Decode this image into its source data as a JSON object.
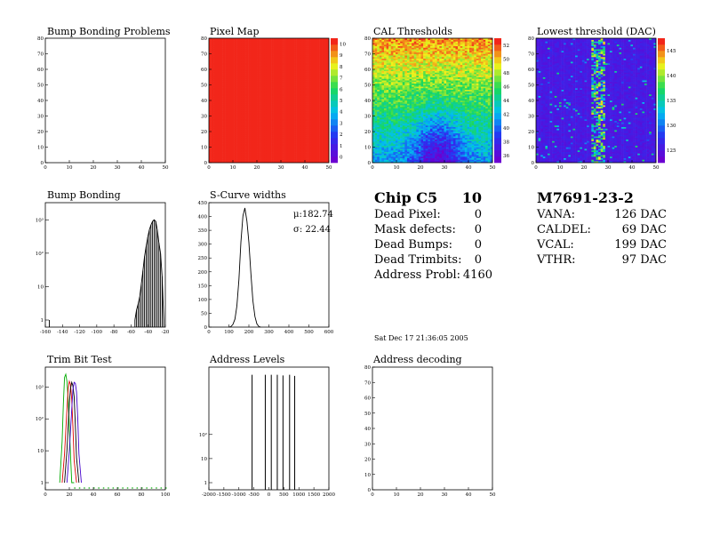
{
  "plots": {
    "bump_problems": {
      "title": "Bump Bonding Problems",
      "xticks": [
        "0",
        "10",
        "20",
        "30",
        "40",
        "50"
      ],
      "yticks": [
        "0",
        "10",
        "20",
        "30",
        "40",
        "50",
        "60",
        "70",
        "80"
      ]
    },
    "pixel_map": {
      "title": "Pixel Map",
      "xticks": [
        "0",
        "10",
        "20",
        "30",
        "40",
        "50"
      ],
      "yticks": [
        "0",
        "10",
        "20",
        "30",
        "40",
        "50",
        "60",
        "70",
        "80"
      ],
      "zticks": [
        "0",
        "1",
        "2",
        "3",
        "4",
        "5",
        "6",
        "7",
        "8",
        "9",
        "10"
      ],
      "fill_value": 10
    },
    "cal_thresholds": {
      "title": "CAL Thresholds",
      "xticks": [
        "0",
        "10",
        "20",
        "30",
        "40",
        "50"
      ],
      "yticks": [
        "0",
        "10",
        "20",
        "30",
        "40",
        "50",
        "60",
        "70",
        "80"
      ],
      "zticks": [
        "36",
        "38",
        "40",
        "42",
        "44",
        "46",
        "48",
        "50",
        "52"
      ]
    },
    "lowest_threshold": {
      "title": "Lowest threshold (DAC)",
      "xticks": [
        "0",
        "10",
        "20",
        "30",
        "40",
        "50"
      ],
      "yticks": [
        "0",
        "10",
        "20",
        "30",
        "40",
        "50",
        "60",
        "70",
        "80"
      ],
      "zticks": [
        "125",
        "130",
        "135",
        "140",
        "145"
      ]
    },
    "bump_bonding": {
      "title": "Bump Bonding",
      "xticks": [
        "-160",
        "-140",
        "-120",
        "-100",
        "-80",
        "-60",
        "-40",
        "-20"
      ],
      "yticks": [
        "1",
        "10",
        "10²",
        "10³"
      ]
    },
    "scurve": {
      "title": "S-Curve widths",
      "xticks": [
        "0",
        "100",
        "200",
        "300",
        "400",
        "500",
        "600"
      ],
      "yticks": [
        "0",
        "50",
        "100",
        "150",
        "200",
        "250",
        "300",
        "350",
        "400",
        "450"
      ],
      "stat_mu": "μ:182.74",
      "stat_sigma": "σ: 22.44"
    },
    "trim_bit": {
      "title": "Trim Bit Test",
      "xticks": [
        "0",
        "20",
        "40",
        "60",
        "80",
        "100"
      ],
      "yticks": [
        "1",
        "10",
        "10²",
        "10³"
      ]
    },
    "address_levels": {
      "title": "Address Levels",
      "xticks": [
        "-2000",
        "-1500",
        "-1000",
        "-500",
        "0",
        "500",
        "1000",
        "1500",
        "2000"
      ],
      "yticks": [
        "1",
        "10",
        "10²"
      ]
    },
    "address_decoding": {
      "title": "Address decoding",
      "xticks": [
        "0",
        "10",
        "20",
        "30",
        "40",
        "50"
      ],
      "yticks": [
        "0",
        "10",
        "20",
        "30",
        "40",
        "50",
        "60",
        "70",
        "80"
      ]
    }
  },
  "summary": {
    "chip_label": "Chip C5",
    "chip_value": "10",
    "rows": [
      {
        "label": "Dead Pixel:",
        "value": "0"
      },
      {
        "label": "Mask defects:",
        "value": "0"
      },
      {
        "label": "Dead Bumps:",
        "value": "0"
      },
      {
        "label": "Dead Trimbits:",
        "value": "0"
      },
      {
        "label": "Address Probl:",
        "value": "4160"
      }
    ],
    "date": "Sat Dec 17 21:36:05 2005"
  },
  "module": {
    "id": "M7691-23-2",
    "rows": [
      {
        "label": "VANA:",
        "value": "126 DAC"
      },
      {
        "label": "CALDEL:",
        "value": "69 DAC"
      },
      {
        "label": "VCAL:",
        "value": "199 DAC"
      },
      {
        "label": "VTHR:",
        "value": "97 DAC"
      }
    ]
  },
  "chart_data": [
    {
      "type": "heatmap",
      "title": "Bump Bonding Problems",
      "xlim": [
        0,
        52
      ],
      "ylim": [
        0,
        80
      ],
      "values": "empty"
    },
    {
      "type": "heatmap",
      "title": "Pixel Map",
      "xlim": [
        0,
        52
      ],
      "ylim": [
        0,
        80
      ],
      "zlim": [
        0,
        10
      ],
      "uniform_value": 10
    },
    {
      "type": "heatmap",
      "title": "CAL Thresholds",
      "xlim": [
        0,
        52
      ],
      "ylim": [
        0,
        80
      ],
      "zlim": [
        35,
        53
      ],
      "trend": "high (~50) at top, low (~38) near bottom centre x 20-35"
    },
    {
      "type": "heatmap",
      "title": "Lowest threshold (DAC)",
      "xlim": [
        0,
        52
      ],
      "ylim": [
        0,
        80
      ],
      "zlim": [
        122,
        148
      ],
      "trend": "mostly ~122; column band at x 24-29 with values 128-146"
    },
    {
      "type": "bar",
      "title": "Bump Bonding",
      "xlim": [
        -160,
        -10
      ],
      "log_y": true,
      "x": [
        -155,
        -48,
        -46,
        -44,
        -42,
        -40,
        -38,
        -36,
        -34,
        -32,
        -30,
        -28,
        -26,
        -24,
        -22,
        -20,
        -18,
        -16,
        -14,
        -12
      ],
      "values": [
        1,
        1,
        2,
        3,
        5,
        12,
        30,
        80,
        160,
        300,
        500,
        700,
        900,
        1000,
        900,
        500,
        200,
        100,
        20,
        1
      ]
    },
    {
      "type": "bar",
      "title": "S-Curve widths",
      "xlim": [
        0,
        600
      ],
      "ylim": [
        0,
        470
      ],
      "x": [
        110,
        120,
        130,
        140,
        150,
        160,
        170,
        180,
        190,
        200,
        210,
        220,
        230,
        240,
        250
      ],
      "values": [
        2,
        10,
        30,
        80,
        180,
        320,
        420,
        450,
        400,
        320,
        200,
        100,
        40,
        12,
        2
      ]
    },
    {
      "type": "line",
      "title": "Trim Bit Test",
      "xlim": [
        0,
        100
      ],
      "log_y": true,
      "series": [
        {
          "color": "#00aa00",
          "x": [
            12,
            14,
            15,
            16,
            17,
            18,
            19,
            20,
            21,
            22,
            24
          ],
          "values": [
            1,
            20,
            300,
            2000,
            2500,
            1500,
            400,
            60,
            8,
            1,
            1
          ]
        },
        {
          "color": "#dd0000",
          "x": [
            14,
            16,
            18,
            19,
            20,
            21,
            22,
            23,
            24,
            26
          ],
          "values": [
            1,
            8,
            200,
            900,
            1500,
            1200,
            400,
            60,
            5,
            1
          ]
        },
        {
          "color": "#000000",
          "x": [
            16,
            18,
            20,
            21,
            22,
            23,
            24,
            25,
            26,
            28
          ],
          "values": [
            1,
            10,
            300,
            900,
            1400,
            1100,
            500,
            60,
            6,
            1
          ]
        },
        {
          "color": "#4400cc",
          "x": [
            18,
            20,
            22,
            23,
            24,
            25,
            26,
            27,
            28,
            30
          ],
          "values": [
            1,
            10,
            200,
            800,
            1400,
            1300,
            700,
            100,
            8,
            1
          ]
        }
      ]
    },
    {
      "type": "bar",
      "title": "Address Levels",
      "xlim": [
        -2000,
        2000
      ],
      "log_y": true,
      "x": [
        -560,
        -120,
        80,
        280,
        470,
        690,
        860
      ],
      "values": [
        30000,
        30000,
        30000,
        30000,
        28000,
        30000,
        27000
      ]
    },
    {
      "type": "heatmap",
      "title": "Address decoding",
      "xlim": [
        0,
        52
      ],
      "ylim": [
        0,
        80
      ],
      "values": "empty"
    }
  ]
}
